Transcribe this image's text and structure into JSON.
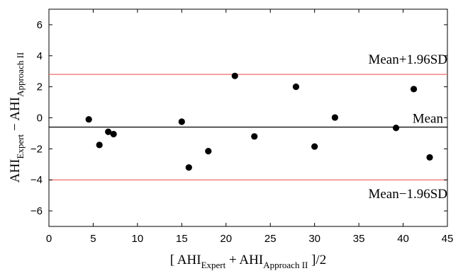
{
  "chart_data": {
    "type": "scatter",
    "xlim": [
      0,
      45
    ],
    "ylim": [
      -7,
      7
    ],
    "x_ticks": [
      0,
      5,
      10,
      15,
      20,
      25,
      30,
      35,
      40,
      45
    ],
    "y_ticks": [
      -6,
      -4,
      -2,
      0,
      2,
      4,
      6
    ],
    "xlabel": {
      "open": "[ AHI",
      "sub1": "Expert",
      "mid": " + AHI",
      "sub2": "Approach II",
      "close": " ]/2"
    },
    "ylabel": {
      "a": "AHI",
      "sub1": "Expert",
      "mid": " − AHI",
      "sub2": "Approach II"
    },
    "points": [
      {
        "x": 4.5,
        "y": -0.1
      },
      {
        "x": 5.7,
        "y": -1.75
      },
      {
        "x": 6.7,
        "y": -0.9
      },
      {
        "x": 7.3,
        "y": -1.05
      },
      {
        "x": 15.0,
        "y": -0.25
      },
      {
        "x": 15.8,
        "y": -3.2
      },
      {
        "x": 18.0,
        "y": -2.15
      },
      {
        "x": 21.0,
        "y": 2.7
      },
      {
        "x": 23.2,
        "y": -1.2
      },
      {
        "x": 27.9,
        "y": 2.0
      },
      {
        "x": 30.0,
        "y": -1.85
      },
      {
        "x": 32.3,
        "y": 0.02
      },
      {
        "x": 39.2,
        "y": -0.65
      },
      {
        "x": 41.2,
        "y": 1.85
      },
      {
        "x": 43.0,
        "y": -2.55
      }
    ],
    "reference_lines": [
      {
        "label": "Mean+1.96SD",
        "y": 2.8,
        "color": "#f26b6b"
      },
      {
        "label": "Mean",
        "y": -0.6,
        "color": "#000000"
      },
      {
        "label": "Mean−1.96SD",
        "y": -4.0,
        "color": "#f26b6b"
      }
    ],
    "grid": false
  }
}
